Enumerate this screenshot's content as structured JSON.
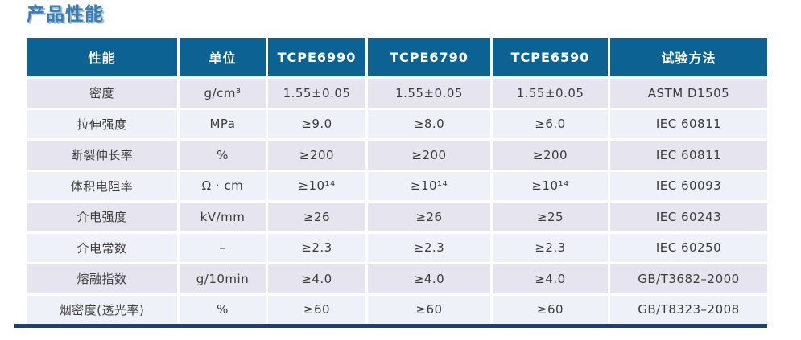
{
  "page_title": "产品性能",
  "colors": {
    "header_bg": "#0c6292",
    "row_odd": "#e6e4ee",
    "row_even": "#eef1f8",
    "accent_bar": "#20406e",
    "title_color": "#3d7cb0",
    "title_shadow": "#9fbfda",
    "cell_text": "#3c3c3c"
  },
  "table": {
    "headers": [
      "性能",
      "单位",
      "TCPE6990",
      "TCPE6790",
      "TCPE6590",
      "试验方法"
    ],
    "rows": [
      [
        "密度",
        "g/cm³",
        "1.55±0.05",
        "1.55±0.05",
        "1.55±0.05",
        "ASTM D1505"
      ],
      [
        "拉伸强度",
        "MPa",
        "≥9.0",
        "≥8.0",
        "≥6.0",
        "IEC 60811"
      ],
      [
        "断裂伸长率",
        "%",
        "≥200",
        "≥200",
        "≥200",
        "IEC 60811"
      ],
      [
        "体积电阻率",
        "Ω · cm",
        "≥10¹⁴",
        "≥10¹⁴",
        "≥10¹⁴",
        "IEC 60093"
      ],
      [
        "介电强度",
        "kV/mm",
        "≥26",
        "≥26",
        "≥25",
        "IEC 60243"
      ],
      [
        "介电常数",
        "–",
        "≥2.3",
        "≥2.3",
        "≥2.3",
        "IEC 60250"
      ],
      [
        "熔融指数",
        "g/10min",
        "≥4.0",
        "≥4.0",
        "≥4.0",
        "GB/T3682–2000"
      ],
      [
        "烟密度(透光率)",
        "%",
        "≥60",
        "≥60",
        "≥60",
        "GB/T8323–2008"
      ]
    ]
  }
}
